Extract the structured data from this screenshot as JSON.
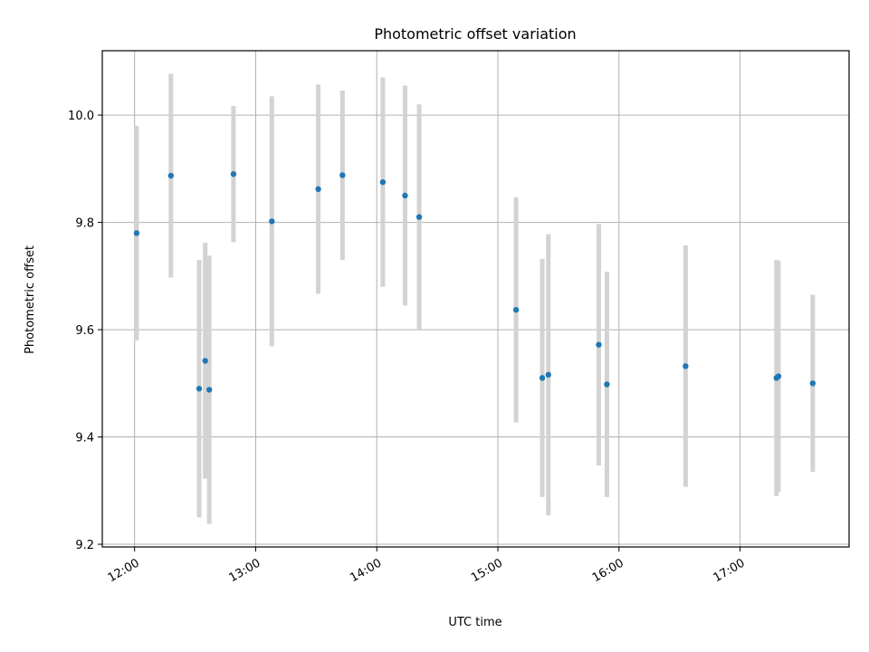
{
  "chart_data": {
    "type": "scatter",
    "title": "Photometric offset variation",
    "xlabel": "UTC time",
    "ylabel": "Photometric offset",
    "x_ticks": [
      "12:00",
      "13:00",
      "14:00",
      "15:00",
      "16:00",
      "17:00"
    ],
    "y_ticks": [
      "9.2",
      "9.4",
      "9.6",
      "9.8",
      "10.0"
    ],
    "xlim": [
      "11:44",
      "17:54"
    ],
    "ylim": [
      9.195,
      10.12
    ],
    "grid": true,
    "colors": {
      "point": "#1f77b4",
      "errorbar": "#d3d3d3",
      "grid": "#b0b0b0"
    },
    "points": [
      {
        "x": "12:01",
        "y": 9.78,
        "err": 0.2
      },
      {
        "x": "12:18",
        "y": 9.887,
        "err": 0.19
      },
      {
        "x": "12:32",
        "y": 9.49,
        "err": 0.24
      },
      {
        "x": "12:35",
        "y": 9.542,
        "err": 0.22
      },
      {
        "x": "12:37",
        "y": 9.488,
        "err": 0.25
      },
      {
        "x": "12:49",
        "y": 9.89,
        "err": 0.127
      },
      {
        "x": "13:08",
        "y": 9.802,
        "err": 0.233
      },
      {
        "x": "13:31",
        "y": 9.862,
        "err": 0.195
      },
      {
        "x": "13:43",
        "y": 9.888,
        "err": 0.158
      },
      {
        "x": "14:03",
        "y": 9.875,
        "err": 0.195
      },
      {
        "x": "14:14",
        "y": 9.85,
        "err": 0.205
      },
      {
        "x": "14:21",
        "y": 9.81,
        "err": 0.21
      },
      {
        "x": "15:09",
        "y": 9.637,
        "err": 0.21
      },
      {
        "x": "15:22",
        "y": 9.51,
        "err": 0.222
      },
      {
        "x": "15:25",
        "y": 9.516,
        "err": 0.262
      },
      {
        "x": "15:50",
        "y": 9.572,
        "err": 0.225
      },
      {
        "x": "15:54",
        "y": 9.498,
        "err": 0.21
      },
      {
        "x": "16:33",
        "y": 9.532,
        "err": 0.225
      },
      {
        "x": "17:18",
        "y": 9.51,
        "err": 0.22
      },
      {
        "x": "17:19",
        "y": 9.513,
        "err": 0.215
      },
      {
        "x": "17:36",
        "y": 9.5,
        "err": 0.165
      }
    ]
  }
}
